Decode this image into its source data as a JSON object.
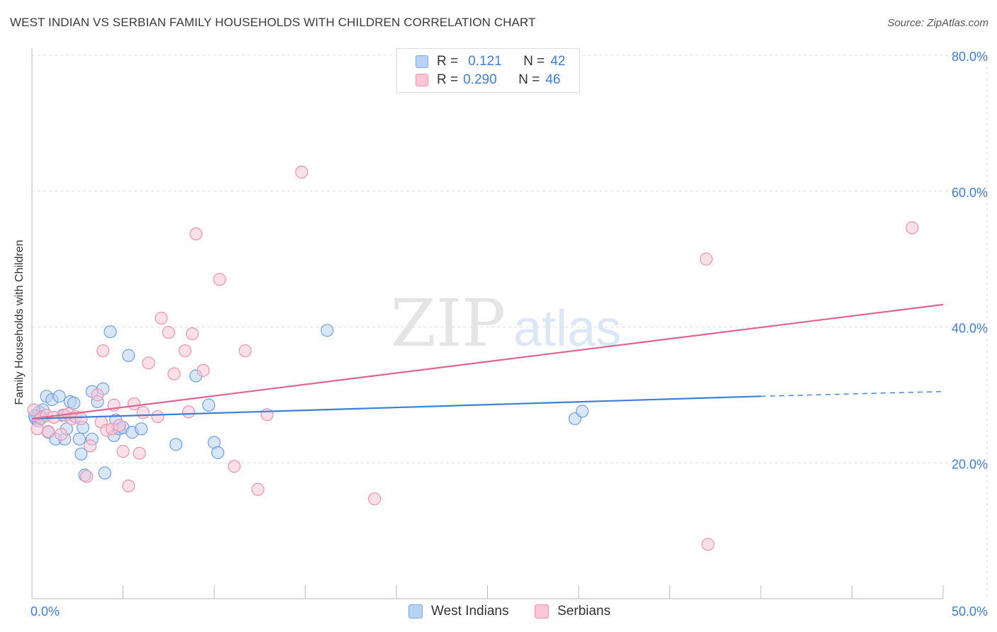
{
  "title": "WEST INDIAN VS SERBIAN FAMILY HOUSEHOLDS WITH CHILDREN CORRELATION CHART",
  "source": "Source: ZipAtlas.com",
  "watermark": {
    "zip": "ZIP",
    "atlas": "atlas"
  },
  "legend": {
    "r_label": "R =",
    "n_label": "N =",
    "rows": [
      {
        "r": "0.121",
        "n": "42",
        "fill": "#b8d2f5",
        "stroke": "#7aa9e6"
      },
      {
        "r": "0.290",
        "n": "46",
        "fill": "#f9c6d5",
        "stroke": "#ee92af"
      }
    ]
  },
  "chart_data": {
    "type": "scatter",
    "title": "WEST INDIAN VS SERBIAN FAMILY HOUSEHOLDS WITH CHILDREN CORRELATION CHART",
    "xlabel": "",
    "ylabel": "Family Households with Children",
    "xlim": [
      0,
      50
    ],
    "ylim": [
      0,
      80
    ],
    "x_tick_labels": [
      "0.0%",
      "50.0%"
    ],
    "y_ticks": [
      20,
      40,
      60,
      80
    ],
    "y_tick_labels": [
      "20.0%",
      "40.0%",
      "60.0%",
      "80.0%"
    ],
    "grid": true,
    "series": [
      {
        "name": "West Indians",
        "color": "#3d7fd8",
        "fill": "#b8d2f5",
        "stroke": "#6fa0e0",
        "points": [
          [
            0.2,
            26.5
          ],
          [
            0.3,
            27.0
          ],
          [
            0.4,
            27.5
          ],
          [
            0.5,
            26.8
          ],
          [
            0.6,
            27.8
          ],
          [
            0.8,
            29.8
          ],
          [
            0.9,
            24.5
          ],
          [
            1.1,
            29.3
          ],
          [
            1.3,
            23.5
          ],
          [
            1.5,
            29.8
          ],
          [
            1.7,
            27.0
          ],
          [
            1.8,
            23.5
          ],
          [
            1.9,
            25.0
          ],
          [
            2.1,
            29.0
          ],
          [
            2.3,
            28.8
          ],
          [
            2.6,
            23.5
          ],
          [
            2.7,
            21.3
          ],
          [
            2.8,
            25.2
          ],
          [
            2.9,
            18.2
          ],
          [
            3.3,
            23.5
          ],
          [
            3.3,
            30.5
          ],
          [
            3.6,
            29.0
          ],
          [
            3.9,
            30.9
          ],
          [
            4.0,
            18.5
          ],
          [
            4.3,
            39.3
          ],
          [
            4.5,
            24.0
          ],
          [
            4.6,
            26.3
          ],
          [
            4.8,
            25.0
          ],
          [
            5.0,
            25.2
          ],
          [
            5.3,
            35.8
          ],
          [
            5.5,
            24.5
          ],
          [
            6.0,
            25.0
          ],
          [
            7.9,
            22.7
          ],
          [
            9.0,
            32.8
          ],
          [
            9.7,
            28.5
          ],
          [
            10.0,
            23.0
          ],
          [
            10.2,
            21.5
          ],
          [
            16.2,
            39.5
          ],
          [
            29.8,
            26.5
          ],
          [
            30.2,
            27.6
          ],
          [
            0.35,
            26.2
          ],
          [
            0.15,
            26.9
          ]
        ],
        "trend": {
          "x0": 0,
          "y0": 26.5,
          "x1": 40,
          "y1": 29.8,
          "dash_to_x": 50,
          "dash_to_y": 30.5
        }
      },
      {
        "name": "Serbians",
        "color": "#e0648f",
        "fill": "#f9c6d5",
        "stroke": "#ee92af",
        "points": [
          [
            0.1,
            27.8
          ],
          [
            0.3,
            25.0
          ],
          [
            0.5,
            26.5
          ],
          [
            0.8,
            27.0
          ],
          [
            0.9,
            24.6
          ],
          [
            1.2,
            26.7
          ],
          [
            1.6,
            24.2
          ],
          [
            1.8,
            27.0
          ],
          [
            2.0,
            27.2
          ],
          [
            2.2,
            26.5
          ],
          [
            2.4,
            26.8
          ],
          [
            2.7,
            26.5
          ],
          [
            3.0,
            18.0
          ],
          [
            3.2,
            22.5
          ],
          [
            3.6,
            30.0
          ],
          [
            3.8,
            26.0
          ],
          [
            3.9,
            36.5
          ],
          [
            4.1,
            24.8
          ],
          [
            4.4,
            25.0
          ],
          [
            4.5,
            28.5
          ],
          [
            4.8,
            25.5
          ],
          [
            5.0,
            21.7
          ],
          [
            5.3,
            16.6
          ],
          [
            5.6,
            28.7
          ],
          [
            5.9,
            21.4
          ],
          [
            6.1,
            27.4
          ],
          [
            6.4,
            34.7
          ],
          [
            6.9,
            26.8
          ],
          [
            7.1,
            41.3
          ],
          [
            7.5,
            39.2
          ],
          [
            7.8,
            33.1
          ],
          [
            8.4,
            36.5
          ],
          [
            8.6,
            27.5
          ],
          [
            8.8,
            39.0
          ],
          [
            9.0,
            53.7
          ],
          [
            9.4,
            33.6
          ],
          [
            10.3,
            47.0
          ],
          [
            11.1,
            19.5
          ],
          [
            11.7,
            36.5
          ],
          [
            12.4,
            16.1
          ],
          [
            12.9,
            27.1
          ],
          [
            14.8,
            62.8
          ],
          [
            18.8,
            14.7
          ],
          [
            37.0,
            50.0
          ],
          [
            37.1,
            8.0
          ],
          [
            48.3,
            54.6
          ]
        ],
        "trend": {
          "x0": 0,
          "y0": 26.5,
          "x1": 50,
          "y1": 43.3
        }
      }
    ]
  }
}
